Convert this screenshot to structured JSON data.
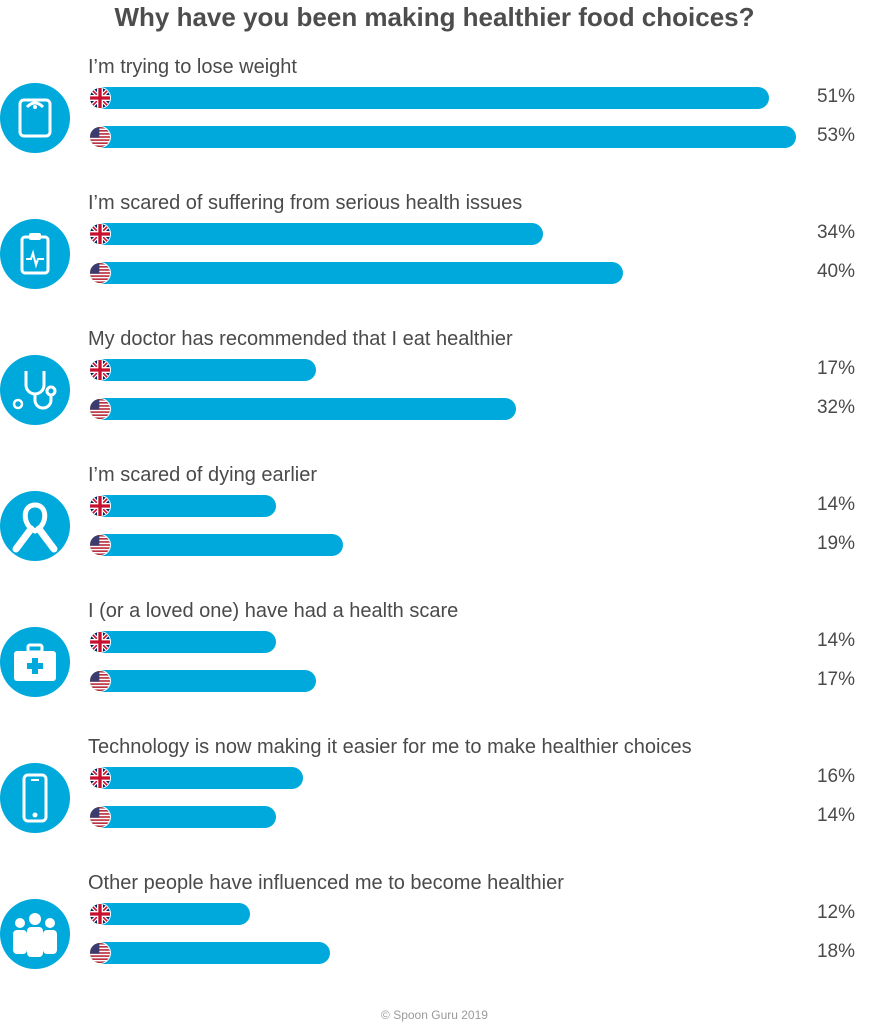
{
  "title": "Why have you been making healthier food choices?",
  "footer": "© Spoon Guru 2019",
  "colors": {
    "bar": "#00a9dc",
    "icon_bg": "#00a9dc",
    "text": "#4a4a4a"
  },
  "chart_data": {
    "type": "bar",
    "orientation": "horizontal",
    "title": "Why have you been making healthier food choices?",
    "unit": "%",
    "xlim": [
      0,
      53
    ],
    "categories": [
      "I’m trying to lose weight",
      "I’m scared of suffering from serious health issues",
      "My doctor has recommended that I eat healthier",
      "I’m scared of dying earlier",
      "I (or a loved one) have had a health scare",
      "Technology is now making it easier for me to make healthier choices",
      "Other people have influenced me to become healthier"
    ],
    "icons": [
      "scale-icon",
      "clipboard-heartbeat-icon",
      "stethoscope-icon",
      "ribbon-icon",
      "first-aid-kit-icon",
      "smartphone-icon",
      "people-group-icon"
    ],
    "series": [
      {
        "name": "UK",
        "flag": "uk-flag-icon",
        "values": [
          51,
          34,
          17,
          14,
          14,
          16,
          12
        ],
        "labels": [
          "51%",
          "34%",
          "17%",
          "14%",
          "14%",
          "16%",
          "12%"
        ]
      },
      {
        "name": "US",
        "flag": "us-flag-icon",
        "values": [
          53,
          40,
          32,
          19,
          17,
          14,
          18
        ],
        "labels": [
          "53%",
          "40%",
          "32%",
          "19%",
          "17%",
          "14%",
          "18%"
        ]
      }
    ]
  }
}
